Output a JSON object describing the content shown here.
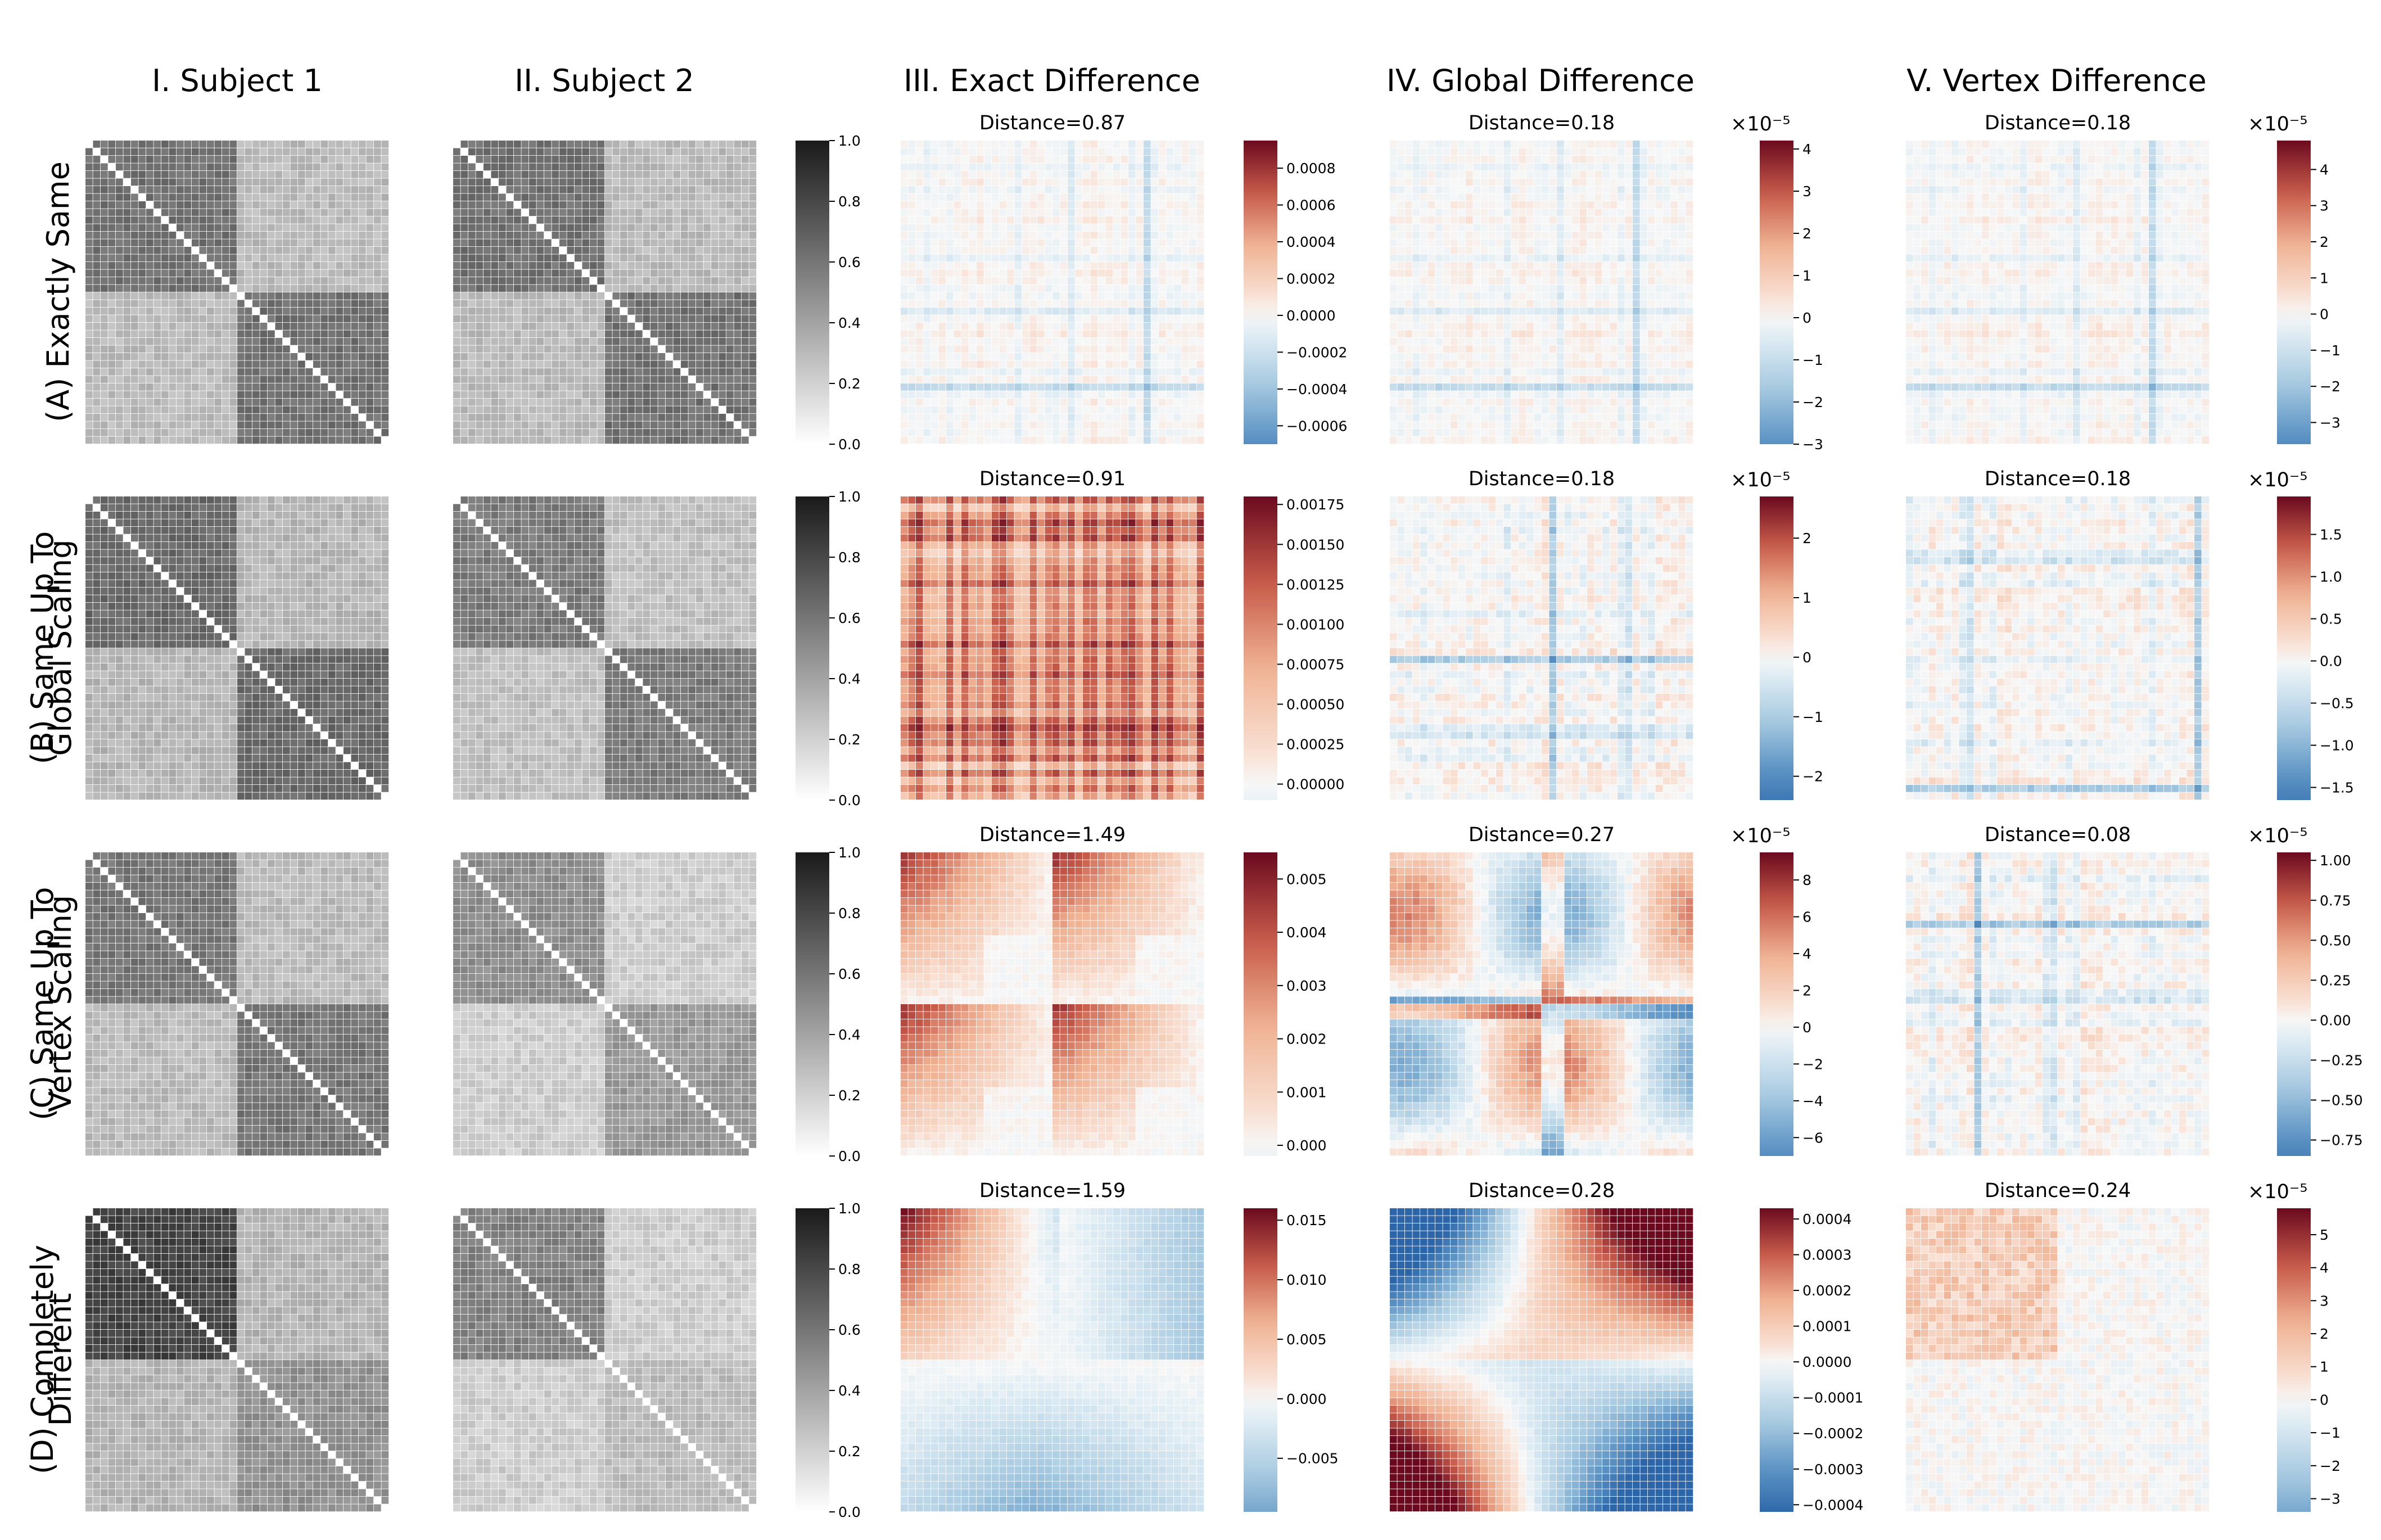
{
  "columns": [
    "I. Subject 1",
    "II. Subject 2",
    "III. Exact Difference",
    "IV. Global Difference",
    "V. Vertex Difference"
  ],
  "rows": [
    {
      "lines": [
        "(A) Exactly Same"
      ]
    },
    {
      "lines": [
        "(B) Same Up To",
        "Global Scaling"
      ]
    },
    {
      "lines": [
        "(C) Same Up To",
        "Vertex Scaling"
      ]
    },
    {
      "lines": [
        "(D) Completely",
        "Different"
      ]
    }
  ],
  "colors": {
    "negative": "#2c66a9",
    "zero": "#f7f7f7",
    "positive": "#6b0a1f",
    "gray_low": "#ffffff",
    "gray_high": "#1a1a1a"
  },
  "chart_data": {
    "type": "heatmap",
    "matrix_size": 40,
    "blocks": 2,
    "subject_colorbar": {
      "ticks": [
        "0.0",
        "0.2",
        "0.4",
        "0.6",
        "0.8",
        "1.0"
      ],
      "range": [
        0,
        1
      ]
    },
    "panels": [
      {
        "id": "A-III",
        "row": 0,
        "col": 2,
        "title": "Distance=0.87",
        "pattern": "stripes",
        "range": [
          -0.0007,
          0.00095
        ],
        "ticks": [
          "0.0008",
          "0.0006",
          "0.0004",
          "0.0002",
          "0.0000",
          "−0.0002",
          "−0.0004",
          "−0.0006"
        ]
      },
      {
        "id": "A-IV",
        "row": 0,
        "col": 3,
        "title": "Distance=0.18",
        "pattern": "stripes",
        "exponent": "×10⁻⁵",
        "range": [
          -3,
          4.2
        ],
        "ticks": [
          "4",
          "3",
          "2",
          "1",
          "0",
          "−1",
          "−2",
          "−3"
        ]
      },
      {
        "id": "A-V",
        "row": 0,
        "col": 4,
        "title": "Distance=0.18",
        "pattern": "stripes",
        "exponent": "×10⁻⁵",
        "range": [
          -3.6,
          4.8
        ],
        "ticks": [
          "4",
          "3",
          "2",
          "1",
          "0",
          "−1",
          "−2",
          "−3"
        ]
      },
      {
        "id": "B-III",
        "row": 1,
        "col": 2,
        "title": "Distance=0.91",
        "pattern": "positive_stripes",
        "range": [
          -0.0001,
          0.0018
        ],
        "ticks": [
          "0.00175",
          "0.00150",
          "0.00125",
          "0.00100",
          "0.00075",
          "0.00050",
          "0.00025",
          "0.00000"
        ]
      },
      {
        "id": "B-IV",
        "row": 1,
        "col": 3,
        "title": "Distance=0.18",
        "pattern": "stripes_strong",
        "exponent": "×10⁻⁵",
        "range": [
          -2.4,
          2.7
        ],
        "ticks": [
          "2",
          "1",
          "0",
          "−1",
          "−2"
        ]
      },
      {
        "id": "B-V",
        "row": 1,
        "col": 4,
        "title": "Distance=0.18",
        "pattern": "stripes_strong",
        "exponent": "×10⁻⁵",
        "range": [
          -1.65,
          1.95
        ],
        "ticks": [
          "1.5",
          "1.0",
          "0.5",
          "0.0",
          "−0.5",
          "−1.0",
          "−1.5"
        ]
      },
      {
        "id": "C-III",
        "row": 2,
        "col": 2,
        "title": "Distance=1.49",
        "pattern": "vertex_blocks",
        "range": [
          -0.0002,
          0.0055
        ],
        "ticks": [
          "0.005",
          "0.004",
          "0.003",
          "0.002",
          "0.001",
          "0.000"
        ]
      },
      {
        "id": "C-IV",
        "row": 2,
        "col": 3,
        "title": "Distance=0.27",
        "pattern": "quadrant_cross",
        "exponent": "×10⁻⁵",
        "range": [
          -7,
          9.5
        ],
        "ticks": [
          "8",
          "6",
          "4",
          "2",
          "0",
          "−2",
          "−4",
          "−6"
        ]
      },
      {
        "id": "C-V",
        "row": 2,
        "col": 4,
        "title": "Distance=0.08",
        "pattern": "stripes_strong",
        "exponent": "×10⁻⁵",
        "range": [
          -0.85,
          1.05
        ],
        "ticks": [
          "1.00",
          "0.75",
          "0.50",
          "0.25",
          "0.00",
          "−0.25",
          "−0.50",
          "−0.75"
        ]
      },
      {
        "id": "D-III",
        "row": 3,
        "col": 2,
        "title": "Distance=1.59",
        "pattern": "gradient_blocks",
        "range": [
          -0.0095,
          0.016
        ],
        "ticks": [
          "0.015",
          "0.010",
          "0.005",
          "0.000",
          "−0.005"
        ]
      },
      {
        "id": "D-IV",
        "row": 3,
        "col": 3,
        "title": "Distance=0.28",
        "pattern": "gradient_quadrants",
        "range": [
          -0.00042,
          0.00043
        ],
        "ticks": [
          "0.0004",
          "0.0003",
          "0.0002",
          "0.0001",
          "0.0000",
          "−0.0001",
          "−0.0002",
          "−0.0003",
          "−0.0004"
        ]
      },
      {
        "id": "D-V",
        "row": 3,
        "col": 4,
        "title": "Distance=0.24",
        "pattern": "block_topleft",
        "exponent": "×10⁻⁵",
        "range": [
          -3.4,
          5.8
        ],
        "ticks": [
          "5",
          "4",
          "3",
          "2",
          "1",
          "0",
          "−1",
          "−2",
          "−3"
        ]
      }
    ],
    "subjects": [
      {
        "row": 0,
        "col": 0,
        "blocks": [
          [
            0.62,
            0.3
          ],
          [
            0.3,
            0.62
          ]
        ]
      },
      {
        "row": 0,
        "col": 1,
        "blocks": [
          [
            0.62,
            0.3
          ],
          [
            0.3,
            0.62
          ]
        ]
      },
      {
        "row": 1,
        "col": 0,
        "blocks": [
          [
            0.65,
            0.32
          ],
          [
            0.32,
            0.65
          ]
        ]
      },
      {
        "row": 1,
        "col": 1,
        "blocks": [
          [
            0.58,
            0.28
          ],
          [
            0.28,
            0.58
          ]
        ]
      },
      {
        "row": 2,
        "col": 0,
        "blocks": [
          [
            0.6,
            0.3
          ],
          [
            0.3,
            0.6
          ]
        ]
      },
      {
        "row": 2,
        "col": 1,
        "blocks": [
          [
            0.5,
            0.22
          ],
          [
            0.22,
            0.45
          ]
        ]
      },
      {
        "row": 3,
        "col": 0,
        "blocks": [
          [
            0.82,
            0.33
          ],
          [
            0.33,
            0.48
          ]
        ]
      },
      {
        "row": 3,
        "col": 1,
        "blocks": [
          [
            0.55,
            0.22
          ],
          [
            0.22,
            0.3
          ]
        ]
      }
    ]
  }
}
